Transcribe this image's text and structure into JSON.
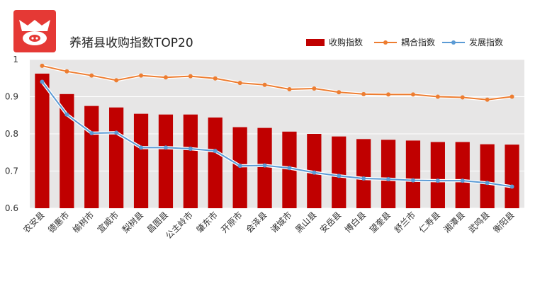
{
  "header": {
    "title": "养猪县收购指数TOP20",
    "logo_icon": "pig-logo-icon",
    "logo_color": "#e53935"
  },
  "colors": {
    "bar": "#c00000",
    "coupling_line": "#ed7d31",
    "development_line": "#5b9bd5",
    "plot_bg": "#e7e6e6",
    "grid": "#ffffff"
  },
  "chart_data": {
    "type": "bar",
    "title": "养猪县收购指数TOP20",
    "categories": [
      "农安县",
      "德惠市",
      "榆树市",
      "宣威市",
      "梨树县",
      "昌图县",
      "公主岭市",
      "肇东市",
      "开原市",
      "会泽县",
      "诸城市",
      "黑山县",
      "安岳县",
      "博白县",
      "望奎县",
      "舒兰市",
      "仁寿县",
      "湘潭县",
      "武鸣县",
      "衡阳县"
    ],
    "series": [
      {
        "name": "收购指数",
        "kind": "bar",
        "values": [
          0.962,
          0.907,
          0.875,
          0.871,
          0.854,
          0.852,
          0.852,
          0.844,
          0.818,
          0.816,
          0.806,
          0.8,
          0.793,
          0.786,
          0.784,
          0.782,
          0.778,
          0.778,
          0.772,
          0.771
        ]
      },
      {
        "name": "耦合指数",
        "kind": "line",
        "values": [
          0.983,
          0.968,
          0.957,
          0.944,
          0.957,
          0.952,
          0.955,
          0.949,
          0.937,
          0.932,
          0.92,
          0.922,
          0.912,
          0.907,
          0.906,
          0.906,
          0.9,
          0.898,
          0.892,
          0.9
        ]
      },
      {
        "name": "发展指数",
        "kind": "line",
        "values": [
          0.94,
          0.852,
          0.802,
          0.803,
          0.763,
          0.763,
          0.76,
          0.754,
          0.714,
          0.715,
          0.708,
          0.696,
          0.687,
          0.68,
          0.678,
          0.675,
          0.674,
          0.674,
          0.668,
          0.658
        ]
      }
    ],
    "yticks": [
      "1",
      "0.9",
      "0.8",
      "0.7",
      "0.6"
    ],
    "ylim": [
      0.6,
      1.0
    ],
    "xlabel": "",
    "ylabel": "",
    "legend": [
      "收购指数",
      "耦合指数",
      "发展指数"
    ],
    "legend_position": "top-right",
    "grid": true
  }
}
